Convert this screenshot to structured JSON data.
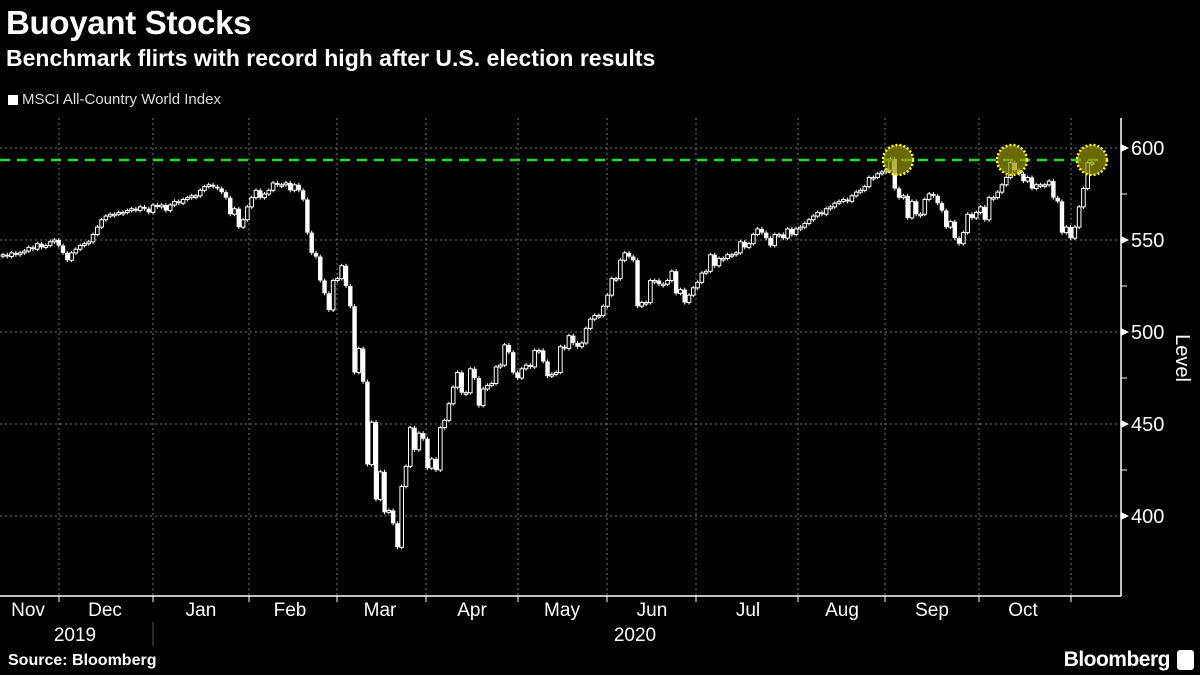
{
  "title": "Buoyant Stocks",
  "subtitle": "Benchmark flirts with record high after U.S. election results",
  "source": "Source: Bloomberg",
  "brand": "Bloomberg",
  "chart_data": {
    "type": "candlestick",
    "title": "Buoyant Stocks",
    "subtitle": "Benchmark flirts with record high after U.S. election results",
    "legend": [
      {
        "name": "MSCI All-Country World Index",
        "color": "#ffffff"
      }
    ],
    "legend_placement": "top-left",
    "ylabel": "Level",
    "y_axis_side": "right",
    "ylim": [
      365,
      618
    ],
    "yticks": [
      400,
      450,
      500,
      550,
      600
    ],
    "grid": true,
    "x_month_labels": [
      "Nov",
      "Dec",
      "Jan",
      "Feb",
      "Mar",
      "Apr",
      "May",
      "Jun",
      "Jul",
      "Aug",
      "Sep",
      "Oct"
    ],
    "x_year_labels": [
      "2019",
      "2020"
    ],
    "reference_line": {
      "value": 593.5,
      "color": "#22dd22",
      "style": "dashed"
    },
    "highlight_color": "#ffff00",
    "highlights": [
      {
        "month": "2020-09",
        "value": 594
      },
      {
        "month": "2020-10",
        "value": 592
      },
      {
        "month": "2020-11",
        "value": 592
      }
    ],
    "closes_by_month": [
      {
        "month": "2019-11",
        "closes": [
          542,
          541,
          543,
          542,
          543,
          544,
          546,
          545,
          548,
          546,
          547,
          549,
          550
        ]
      },
      {
        "month": "2019-12",
        "closes": [
          547,
          543,
          539,
          543,
          545,
          547,
          548,
          549,
          553,
          557,
          561,
          563,
          564,
          564,
          565,
          565,
          566,
          567,
          566,
          568,
          567
        ]
      },
      {
        "month": "2020-01",
        "closes": [
          565,
          569,
          568,
          569,
          566,
          569,
          571,
          570,
          572,
          573,
          574,
          574,
          577,
          579,
          580,
          579,
          578,
          576,
          573,
          564,
          567,
          557,
          561
        ]
      },
      {
        "month": "2020-02",
        "closes": [
          568,
          573,
          577,
          573,
          575,
          577,
          581,
          580,
          580,
          581,
          577,
          580,
          577,
          572,
          554,
          543,
          541,
          528,
          521,
          512
        ]
      },
      {
        "month": "2020-03",
        "closes": [
          528,
          529,
          536,
          525,
          514,
          478,
          491,
          473,
          428,
          451,
          409,
          424,
          402,
          403,
          396,
          383,
          416,
          427,
          448,
          436,
          445,
          442
        ]
      },
      {
        "month": "2020-04",
        "closes": [
          426,
          431,
          425,
          448,
          452,
          461,
          470,
          478,
          467,
          467,
          480,
          475,
          460,
          469,
          471,
          472,
          481,
          482,
          493,
          489
        ]
      },
      {
        "month": "2020-05",
        "closes": [
          478,
          475,
          480,
          482,
          481,
          490,
          490,
          484,
          476,
          477,
          478,
          492,
          491,
          498,
          494,
          492,
          494,
          502,
          507,
          509,
          509
        ]
      },
      {
        "month": "2020-06",
        "closes": [
          514,
          520,
          529,
          529,
          539,
          543,
          541,
          539,
          514,
          516,
          516,
          528,
          528,
          526,
          526,
          528,
          533,
          521,
          523,
          516,
          520,
          524
        ]
      },
      {
        "month": "2020-07",
        "closes": [
          527,
          532,
          533,
          542,
          536,
          540,
          540,
          542,
          542,
          543,
          549,
          546,
          548,
          553,
          556,
          554,
          551,
          547,
          553,
          553,
          551,
          556,
          553
        ]
      },
      {
        "month": "2020-08",
        "closes": [
          556,
          557,
          559,
          561,
          563,
          565,
          564,
          567,
          568,
          570,
          571,
          572,
          571,
          574,
          576,
          577,
          579,
          584,
          584,
          586,
          587,
          588
        ]
      },
      {
        "month": "2020-09",
        "closes": [
          594,
          578,
          573,
          574,
          562,
          571,
          564,
          564,
          572,
          575,
          574,
          570,
          566,
          557,
          560,
          551,
          548,
          554,
          564,
          562,
          565
        ]
      },
      {
        "month": "2020-10",
        "closes": [
          568,
          561,
          573,
          573,
          576,
          580,
          584,
          592,
          588,
          586,
          582,
          584,
          578,
          580,
          580,
          580,
          582,
          573,
          571,
          554,
          557,
          551
        ]
      },
      {
        "month": "2020-11",
        "closes": [
          557,
          568,
          578,
          592,
          592
        ]
      }
    ]
  }
}
